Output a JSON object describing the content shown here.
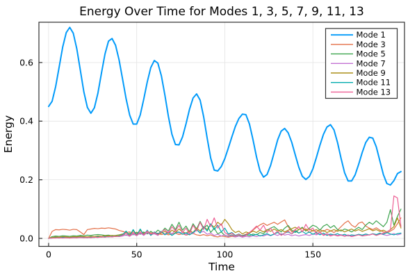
{
  "figure": {
    "background": "#FFFFFF"
  },
  "chart_data": {
    "type": "line",
    "title": "Energy Over Time for Modes 1, 3, 5, 7, 9, 11, 13",
    "xlabel": "Time",
    "ylabel": "Energy",
    "xlim": [
      -5.5,
      202
    ],
    "ylim": [
      -0.0273,
      0.7375
    ],
    "xticks": {
      "values": [
        0,
        50,
        100,
        150
      ],
      "labels": [
        "0",
        "50",
        "100",
        "150"
      ]
    },
    "yticks": {
      "values": [
        0.0,
        0.2,
        0.4,
        0.6
      ],
      "labels": [
        "0.0",
        "0.2",
        "0.4",
        "0.6"
      ]
    },
    "grid": true,
    "grid_color": "#E3E3E3",
    "frame_color": "#2E2E2E",
    "tick_color": "#2E2E2E",
    "legend_position": "top-right",
    "legend_border_color": "#333333",
    "legend_background": "#FFFFFF",
    "x_start": 0,
    "x_step": 2,
    "series": [
      {
        "name": "Mode 1",
        "color": "#009AFA",
        "line_width": 2,
        "values": [
          0.45,
          0.468,
          0.518,
          0.585,
          0.653,
          0.702,
          0.72,
          0.7,
          0.647,
          0.574,
          0.5,
          0.447,
          0.427,
          0.446,
          0.496,
          0.564,
          0.629,
          0.673,
          0.682,
          0.659,
          0.609,
          0.543,
          0.476,
          0.421,
          0.39,
          0.39,
          0.421,
          0.475,
          0.534,
          0.583,
          0.607,
          0.598,
          0.555,
          0.489,
          0.416,
          0.355,
          0.32,
          0.319,
          0.346,
          0.391,
          0.441,
          0.479,
          0.493,
          0.472,
          0.415,
          0.342,
          0.274,
          0.233,
          0.23,
          0.245,
          0.272,
          0.308,
          0.346,
          0.382,
          0.409,
          0.424,
          0.422,
          0.39,
          0.337,
          0.278,
          0.23,
          0.209,
          0.218,
          0.249,
          0.292,
          0.336,
          0.366,
          0.375,
          0.36,
          0.328,
          0.285,
          0.243,
          0.212,
          0.201,
          0.211,
          0.237,
          0.276,
          0.318,
          0.355,
          0.38,
          0.388,
          0.37,
          0.327,
          0.273,
          0.224,
          0.196,
          0.196,
          0.217,
          0.253,
          0.293,
          0.327,
          0.345,
          0.342,
          0.312,
          0.265,
          0.218,
          0.187,
          0.182,
          0.197,
          0.221,
          0.228
        ]
      },
      {
        "name": "Mode 3",
        "color": "#E36F47",
        "line_width": 1.2,
        "values": [
          0,
          0.024,
          0.03,
          0.029,
          0.031,
          0.03,
          0.028,
          0.031,
          0.03,
          0.022,
          0.013,
          0.03,
          0.032,
          0.034,
          0.033,
          0.035,
          0.034,
          0.036,
          0.034,
          0.032,
          0.027,
          0.024,
          0.02,
          0.022,
          0.018,
          0.021,
          0.017,
          0.02,
          0.016,
          0.019,
          0.015,
          0.018,
          0.013,
          0.016,
          0.012,
          0.015,
          0.018,
          0.013,
          0.016,
          0.011,
          0.014,
          0.017,
          0.012,
          0.01,
          0.013,
          0.009,
          0.012,
          0.007,
          0.005,
          0.008,
          0.006,
          0.004,
          0.007,
          0.005,
          0.008,
          0.01,
          0.014,
          0.02,
          0.028,
          0.038,
          0.046,
          0.052,
          0.044,
          0.05,
          0.055,
          0.048,
          0.056,
          0.063,
          0.04,
          0.022,
          0.03,
          0.018,
          0.025,
          0.033,
          0.02,
          0.027,
          0.022,
          0.03,
          0.024,
          0.031,
          0.026,
          0.02,
          0.028,
          0.04,
          0.052,
          0.06,
          0.045,
          0.038,
          0.052,
          0.056,
          0.042,
          0.035,
          0.03,
          0.036,
          0.028,
          0.022,
          0.018,
          0.025,
          0.032,
          0.05,
          0.07
        ]
      },
      {
        "name": "Mode 5",
        "color": "#3DA44E",
        "line_width": 1.2,
        "values": [
          0,
          0.006,
          0.008,
          0.007,
          0.009,
          0.008,
          0.007,
          0.009,
          0.008,
          0.01,
          0.009,
          0.011,
          0.01,
          0.012,
          0.013,
          0.012,
          0.01,
          0.011,
          0.009,
          0.01,
          0.012,
          0.015,
          0.01,
          0.018,
          0.012,
          0.02,
          0.014,
          0.022,
          0.015,
          0.024,
          0.016,
          0.028,
          0.02,
          0.035,
          0.025,
          0.048,
          0.03,
          0.055,
          0.028,
          0.042,
          0.022,
          0.05,
          0.032,
          0.058,
          0.035,
          0.045,
          0.02,
          0.035,
          0.015,
          0.022,
          0.01,
          0.008,
          0.012,
          0.006,
          0.01,
          0.008,
          0.012,
          0.009,
          0.015,
          0.012,
          0.02,
          0.016,
          0.028,
          0.035,
          0.04,
          0.03,
          0.022,
          0.035,
          0.044,
          0.028,
          0.02,
          0.03,
          0.038,
          0.025,
          0.035,
          0.045,
          0.04,
          0.028,
          0.042,
          0.048,
          0.036,
          0.044,
          0.03,
          0.025,
          0.032,
          0.028,
          0.022,
          0.03,
          0.038,
          0.03,
          0.045,
          0.055,
          0.048,
          0.06,
          0.05,
          0.04,
          0.055,
          0.098,
          0.045,
          0.075,
          0.1
        ]
      },
      {
        "name": "Mode 7",
        "color": "#C371D3",
        "line_width": 1.2,
        "values": [
          0,
          0.002,
          0.003,
          0.002,
          0.004,
          0.003,
          0.002,
          0.004,
          0.003,
          0.005,
          0.004,
          0.003,
          0.005,
          0.004,
          0.006,
          0.005,
          0.004,
          0.006,
          0.005,
          0.007,
          0.006,
          0.008,
          0.012,
          0.007,
          0.015,
          0.009,
          0.018,
          0.01,
          0.02,
          0.012,
          0.016,
          0.01,
          0.022,
          0.014,
          0.025,
          0.015,
          0.028,
          0.018,
          0.022,
          0.012,
          0.025,
          0.016,
          0.03,
          0.02,
          0.024,
          0.014,
          0.018,
          0.01,
          0.014,
          0.008,
          0.012,
          0.006,
          0.01,
          0.005,
          0.008,
          0.004,
          0.007,
          0.005,
          0.009,
          0.006,
          0.01,
          0.008,
          0.013,
          0.009,
          0.014,
          0.01,
          0.016,
          0.011,
          0.014,
          0.009,
          0.012,
          0.008,
          0.011,
          0.013,
          0.01,
          0.015,
          0.012,
          0.017,
          0.013,
          0.016,
          0.011,
          0.014,
          0.01,
          0.013,
          0.009,
          0.012,
          0.008,
          0.011,
          0.013,
          0.01,
          0.014,
          0.011,
          0.015,
          0.012,
          0.016,
          0.013,
          0.01,
          0.013,
          0.016,
          0.012,
          0.015
        ]
      },
      {
        "name": "Mode 9",
        "color": "#AC8E18",
        "line_width": 1.2,
        "values": [
          0,
          0.003,
          0.005,
          0.004,
          0.006,
          0.005,
          0.004,
          0.006,
          0.005,
          0.007,
          0.006,
          0.005,
          0.007,
          0.006,
          0.008,
          0.007,
          0.009,
          0.008,
          0.01,
          0.009,
          0.011,
          0.014,
          0.022,
          0.012,
          0.026,
          0.014,
          0.028,
          0.016,
          0.024,
          0.013,
          0.02,
          0.012,
          0.018,
          0.024,
          0.016,
          0.028,
          0.02,
          0.032,
          0.022,
          0.018,
          0.026,
          0.02,
          0.035,
          0.025,
          0.04,
          0.03,
          0.048,
          0.038,
          0.055,
          0.045,
          0.065,
          0.05,
          0.03,
          0.02,
          0.025,
          0.015,
          0.022,
          0.018,
          0.025,
          0.02,
          0.028,
          0.022,
          0.03,
          0.024,
          0.032,
          0.025,
          0.03,
          0.022,
          0.028,
          0.033,
          0.038,
          0.03,
          0.035,
          0.028,
          0.032,
          0.025,
          0.03,
          0.022,
          0.027,
          0.02,
          0.025,
          0.03,
          0.024,
          0.029,
          0.022,
          0.027,
          0.032,
          0.025,
          0.03,
          0.024,
          0.028,
          0.033,
          0.026,
          0.03,
          0.024,
          0.028,
          0.022,
          0.03,
          0.04,
          0.07,
          0.035
        ]
      },
      {
        "name": "Mode 11",
        "color": "#00AAAE",
        "line_width": 1.2,
        "values": [
          0,
          0.001,
          0.002,
          0.001,
          0.003,
          0.002,
          0.001,
          0.003,
          0.002,
          0.004,
          0.003,
          0.002,
          0.004,
          0.003,
          0.005,
          0.004,
          0.006,
          0.005,
          0.007,
          0.006,
          0.008,
          0.012,
          0.025,
          0.008,
          0.03,
          0.01,
          0.032,
          0.012,
          0.028,
          0.01,
          0.022,
          0.015,
          0.024,
          0.012,
          0.02,
          0.01,
          0.018,
          0.022,
          0.014,
          0.019,
          0.012,
          0.02,
          0.03,
          0.018,
          0.04,
          0.025,
          0.05,
          0.03,
          0.045,
          0.022,
          0.035,
          0.015,
          0.02,
          0.01,
          0.015,
          0.008,
          0.012,
          0.015,
          0.01,
          0.014,
          0.008,
          0.012,
          0.016,
          0.01,
          0.015,
          0.02,
          0.012,
          0.018,
          0.022,
          0.015,
          0.025,
          0.018,
          0.024,
          0.016,
          0.022,
          0.014,
          0.02,
          0.012,
          0.018,
          0.01,
          0.015,
          0.012,
          0.016,
          0.01,
          0.014,
          0.008,
          0.012,
          0.01,
          0.014,
          0.011,
          0.015,
          0.012,
          0.016,
          0.013,
          0.018,
          0.014,
          0.02,
          0.015,
          0.012,
          0.016,
          0.018
        ]
      },
      {
        "name": "Mode 13",
        "color": "#ED5E93",
        "line_width": 1.2,
        "values": [
          0,
          0.001,
          0.001,
          0.002,
          0.001,
          0.002,
          0.001,
          0.002,
          0.002,
          0.003,
          0.002,
          0.003,
          0.002,
          0.004,
          0.003,
          0.005,
          0.004,
          0.006,
          0.005,
          0.007,
          0.006,
          0.01,
          0.018,
          0.008,
          0.02,
          0.01,
          0.022,
          0.012,
          0.025,
          0.014,
          0.02,
          0.012,
          0.022,
          0.03,
          0.018,
          0.04,
          0.025,
          0.045,
          0.02,
          0.035,
          0.015,
          0.045,
          0.025,
          0.055,
          0.03,
          0.065,
          0.04,
          0.07,
          0.035,
          0.05,
          0.02,
          0.012,
          0.018,
          0.008,
          0.014,
          0.006,
          0.01,
          0.02,
          0.03,
          0.042,
          0.028,
          0.045,
          0.02,
          0.035,
          0.015,
          0.025,
          0.01,
          0.018,
          0.025,
          0.015,
          0.03,
          0.04,
          0.022,
          0.048,
          0.028,
          0.035,
          0.015,
          0.022,
          0.01,
          0.015,
          0.008,
          0.012,
          0.008,
          0.011,
          0.007,
          0.01,
          0.006,
          0.009,
          0.012,
          0.008,
          0.01,
          0.012,
          0.015,
          0.01,
          0.014,
          0.018,
          0.022,
          0.03,
          0.145,
          0.138,
          0.04
        ]
      }
    ]
  }
}
